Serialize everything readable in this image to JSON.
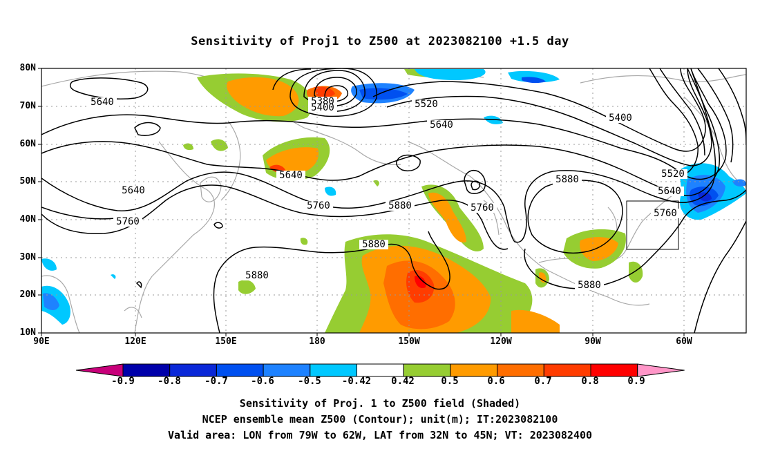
{
  "title": "Sensitivity of Proj1 to Z500 at 2023082100 +1.5 day",
  "lat_labels": [
    "80N",
    "70N",
    "60N",
    "50N",
    "40N",
    "30N",
    "20N",
    "10N"
  ],
  "lon_labels": [
    "90E",
    "120E",
    "150E",
    "180",
    "150W",
    "120W",
    "90W",
    "60W"
  ],
  "contour_labels": [
    {
      "text": "5640"
    },
    {
      "text": "5380"
    },
    {
      "text": "5400"
    },
    {
      "text": "5520"
    },
    {
      "text": "5640"
    },
    {
      "text": "5400"
    },
    {
      "text": "5640"
    },
    {
      "text": "5640"
    },
    {
      "text": "5760"
    },
    {
      "text": "5880"
    },
    {
      "text": "5760"
    },
    {
      "text": "5760"
    },
    {
      "text": "5880"
    },
    {
      "text": "5520"
    },
    {
      "text": "5640"
    },
    {
      "text": "5760"
    },
    {
      "text": "5880"
    },
    {
      "text": "5880"
    },
    {
      "text": "5880"
    }
  ],
  "colorbar": {
    "labels": [
      "-0.9",
      "-0.8",
      "-0.7",
      "-0.6",
      "-0.5",
      "-0.42",
      "0.42",
      "0.5",
      "0.6",
      "0.7",
      "0.8",
      "0.9"
    ],
    "colors": [
      "#c8007a",
      "#0000aa",
      "#0a28d8",
      "#0050f0",
      "#1e82ff",
      "#00c8ff",
      "#ffffff",
      "#96cd32",
      "#ff9b00",
      "#ff6e00",
      "#ff3c00",
      "#ff0000",
      "#ff96c8"
    ]
  },
  "captions": [
    "Sensitivity of Proj. 1 to Z500 field (Shaded)",
    "NCEP ensemble mean Z500 (Contour); unit(m); IT:2023082100",
    "Valid area: LON from 79W to 62W, LAT from 32N to 45N; VT: 2023082400"
  ]
}
